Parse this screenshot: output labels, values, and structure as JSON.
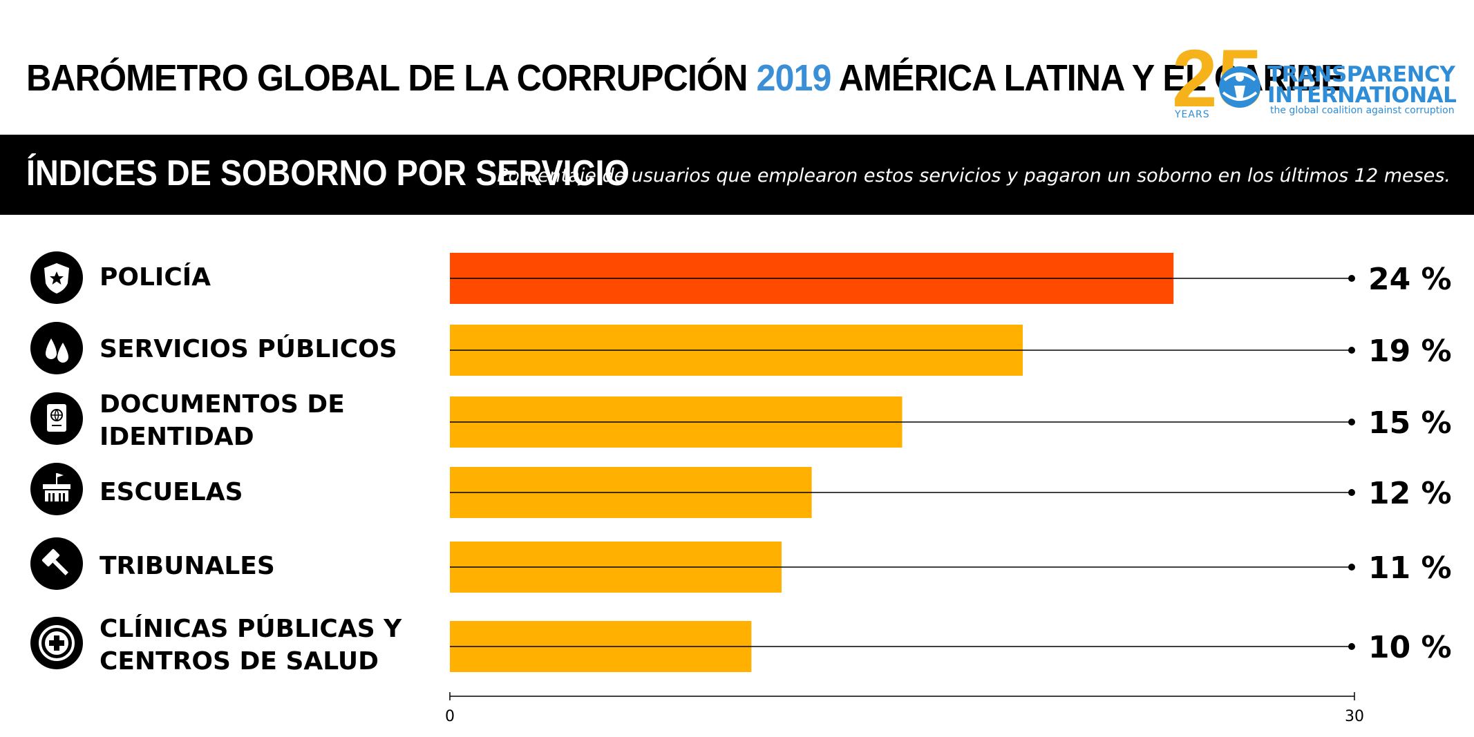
{
  "header": {
    "title_part1": "BARÓMETRO GLOBAL DE LA CORRUPCIÓN ",
    "title_year": "2019",
    "title_part2": " AMÉRICA LATINA Y EL CARIBE",
    "year_color": "#3a8fd6"
  },
  "logo": {
    "number": "25",
    "years": "YEARS",
    "line1": "TRANSPARENCY",
    "line2": "INTERNATIONAL",
    "tagline": "the global coalition against corruption",
    "number_color": "#f5b21b",
    "text_color": "#2e8dd6"
  },
  "banner": {
    "title": "ÍNDICES DE SOBORNO POR SERVICIO",
    "subtitle": "Porcentaje de usuarios que emplearon estos servicios y pagaron un soborno en los últimos 12 meses."
  },
  "rows": [
    {
      "label": "POLICÍA",
      "icon": "police-badge-icon"
    },
    {
      "label": "SERVICIOS PÚBLICOS",
      "icon": "water-drops-icon"
    },
    {
      "label": "DOCUMENTOS DE\nIDENTIDAD",
      "icon": "passport-icon"
    },
    {
      "label": "ESCUELAS",
      "icon": "school-icon"
    },
    {
      "label": "TRIBUNALES",
      "icon": "gavel-icon"
    },
    {
      "label": "CLÍNICAS PÚBLICAS Y\nCENTROS DE SALUD",
      "icon": "medical-cross-icon"
    }
  ],
  "chart_data": {
    "type": "bar",
    "orientation": "horizontal",
    "categories": [
      "POLICÍA",
      "SERVICIOS PÚBLICOS",
      "DOCUMENTOS DE IDENTIDAD",
      "ESCUELAS",
      "TRIBUNALES",
      "CLÍNICAS PÚBLICAS Y CENTROS DE SALUD"
    ],
    "values": [
      24,
      19,
      15,
      12,
      11,
      10
    ],
    "value_labels": [
      "24 %",
      "19 %",
      "15 %",
      "12 %",
      "11 %",
      "10 %"
    ],
    "xlim": [
      0,
      30
    ],
    "tick_labels": [
      "0",
      "30"
    ],
    "highlight_color": "#ff4a00",
    "bar_color": "#ffb000",
    "highlighted_index": 0
  }
}
